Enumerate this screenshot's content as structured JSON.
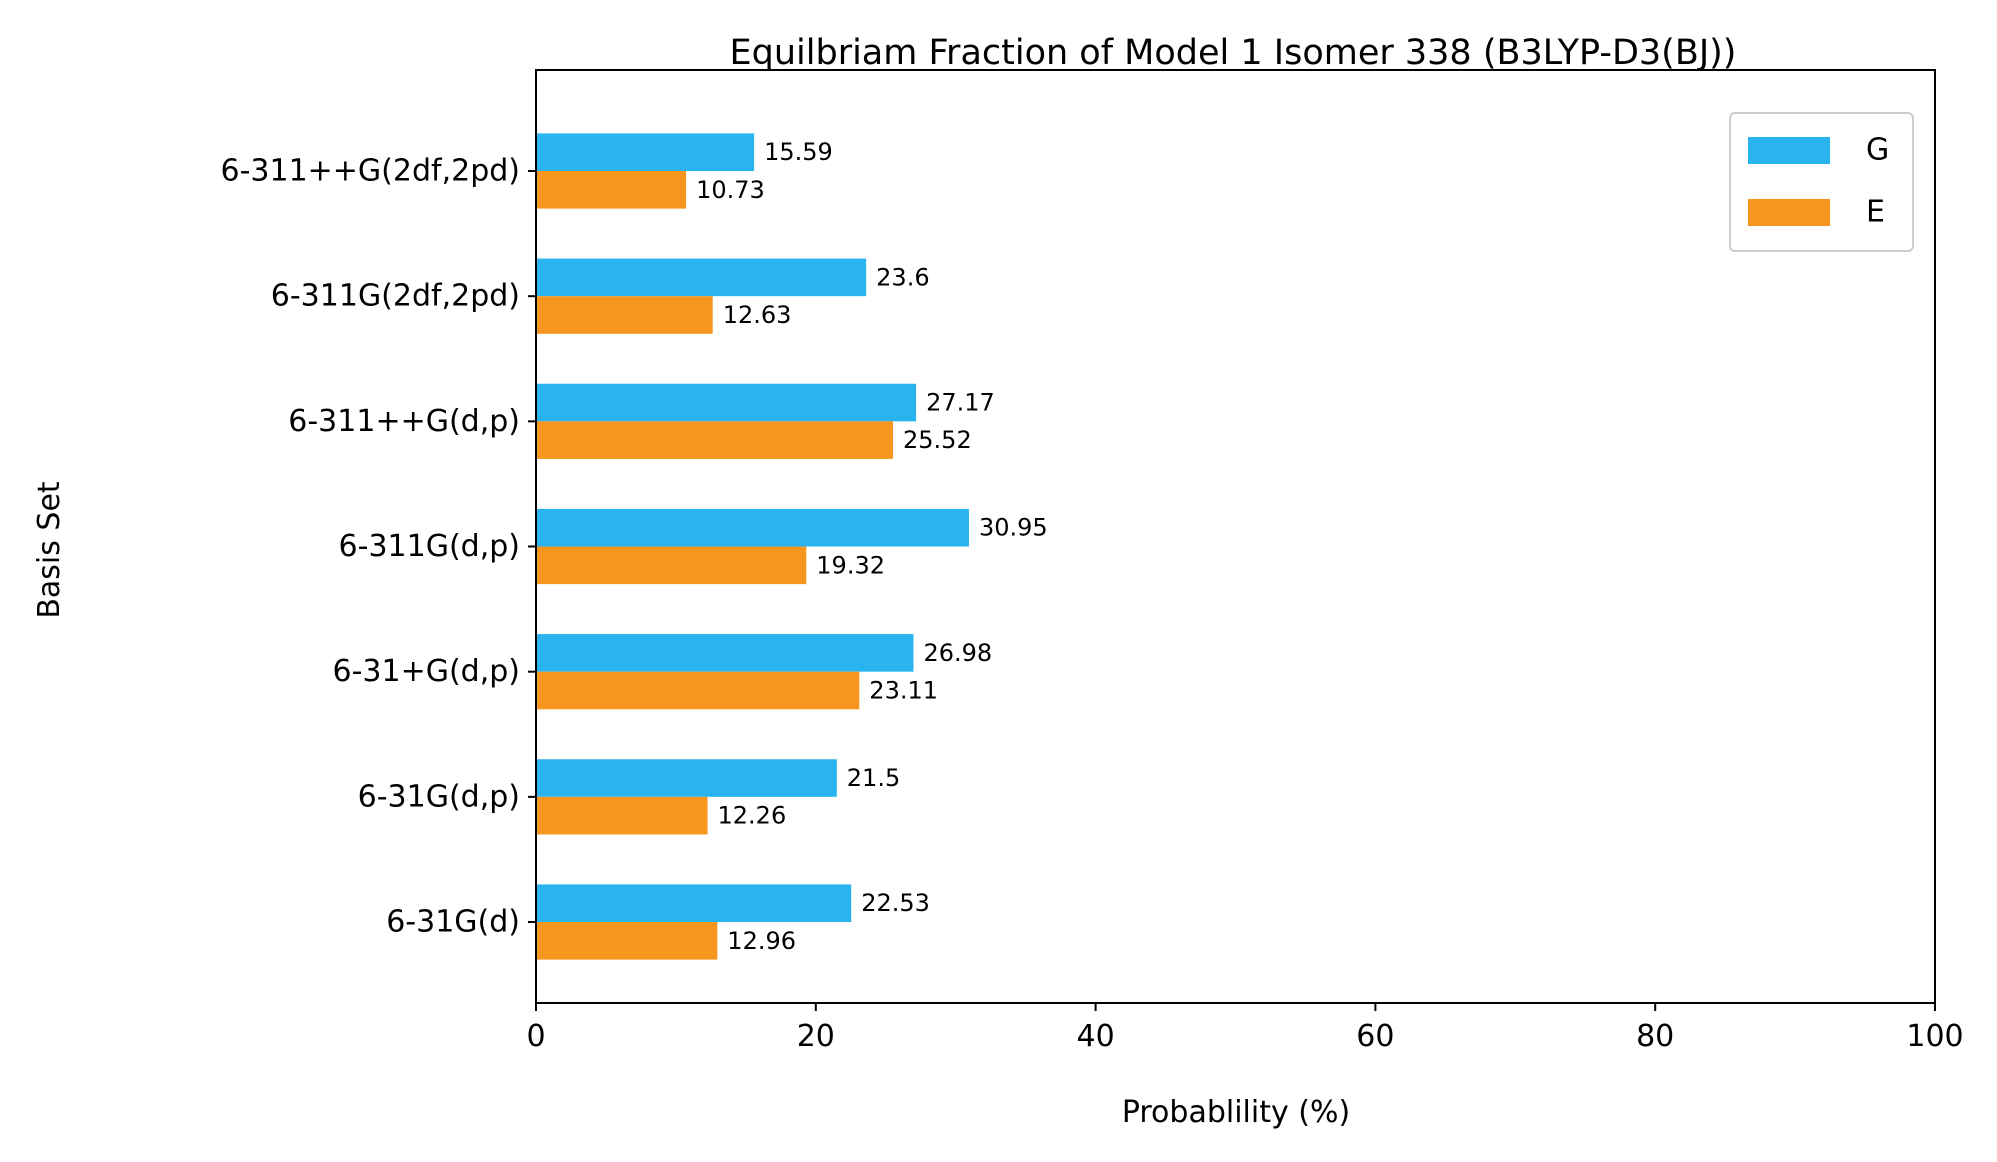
{
  "chart_data": {
    "type": "bar",
    "orientation": "horizontal",
    "title": "Equilbriam Fraction of Model 1 Isomer 338 (B3LYP-D3(BJ))",
    "xlabel": "Probablility (%)",
    "ylabel": "Basis Set",
    "xlim": [
      0,
      100
    ],
    "xticks": [
      0,
      20,
      40,
      60,
      80,
      100
    ],
    "categories": [
      "6-311++G(2df,2pd)",
      "6-311G(2df,2pd)",
      "6-311++G(d,p)",
      "6-311G(d,p)",
      "6-31+G(d,p)",
      "6-31G(d,p)",
      "6-31G(d)"
    ],
    "series": [
      {
        "name": "G",
        "color": "#29b4f0",
        "values": [
          15.59,
          23.6,
          27.17,
          30.95,
          26.98,
          21.5,
          22.53
        ],
        "labels": [
          "15.59",
          "23.6",
          "27.17",
          "30.95",
          "26.98",
          "21.5",
          "22.53"
        ]
      },
      {
        "name": "E",
        "color": "#f7961e",
        "values": [
          10.73,
          12.63,
          25.52,
          19.32,
          23.11,
          12.26,
          12.96
        ],
        "labels": [
          "10.73",
          "12.63",
          "25.52",
          "19.32",
          "23.11",
          "12.26",
          "12.96"
        ]
      }
    ],
    "grid": false,
    "legend_position": "top-right"
  }
}
